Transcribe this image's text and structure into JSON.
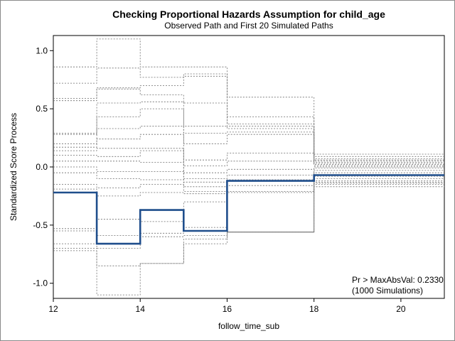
{
  "chart_data": {
    "type": "line",
    "title": "Checking Proportional Hazards Assumption for child_age",
    "subtitle": "Observed Path and First 20 Simulated Paths",
    "xlabel": "follow_time_sub",
    "ylabel": "Standardized Score Process",
    "xlim": [
      12,
      21
    ],
    "ylim": [
      -1.13,
      1.13
    ],
    "xticks": [
      12,
      14,
      16,
      18,
      20
    ],
    "yticks": [
      -1.0,
      -0.5,
      0.0,
      0.5,
      1.0
    ],
    "ytick_labels": [
      "-1.0",
      "-0.5",
      "0.0",
      "0.5",
      "1.0"
    ],
    "grid": false,
    "inset_text": [
      "Pr > MaxAbsVal: 0.2330",
      "(1000 Simulations)"
    ],
    "colors": {
      "observed": "#1f4e8c",
      "simulated": "#6e6e6e",
      "axis": "#000000"
    },
    "step_x": [
      12,
      13,
      14,
      15,
      16,
      18,
      21
    ],
    "observed": {
      "values": [
        -0.22,
        -0.66,
        -0.37,
        -0.55,
        -0.12,
        -0.07
      ]
    },
    "simulated": [
      [
        0.86,
        1.1,
        0.86,
        0.86,
        0.6,
        0.11
      ],
      [
        0.72,
        0.85,
        0.77,
        0.8,
        0.43,
        0.09
      ],
      [
        0.59,
        0.68,
        0.7,
        0.78,
        0.37,
        0.07
      ],
      [
        0.57,
        0.67,
        0.62,
        0.55,
        0.35,
        0.06
      ],
      [
        0.29,
        0.55,
        0.56,
        0.35,
        0.33,
        0.05
      ],
      [
        0.28,
        0.43,
        0.5,
        0.29,
        0.3,
        0.04
      ],
      [
        0.2,
        0.33,
        0.35,
        0.2,
        0.28,
        0.03
      ],
      [
        0.17,
        0.24,
        0.28,
        0.06,
        0.12,
        0.02
      ],
      [
        0.14,
        0.16,
        0.16,
        0.01,
        0.05,
        0.01
      ],
      [
        0.1,
        0.09,
        0.14,
        -0.05,
        -0.02,
        0.0
      ],
      [
        0.05,
        0.05,
        0.04,
        -0.1,
        -0.07,
        -0.01
      ],
      [
        0.0,
        -0.04,
        -0.04,
        -0.13,
        -0.11,
        -0.03
      ],
      [
        -0.05,
        -0.1,
        -0.11,
        -0.17,
        -0.16,
        -0.05
      ],
      [
        -0.15,
        -0.18,
        -0.15,
        -0.21,
        -0.21,
        -0.08
      ],
      [
        -0.19,
        -0.25,
        -0.22,
        -0.23,
        -0.22,
        -0.1
      ],
      [
        -0.53,
        -0.45,
        -0.47,
        -0.3,
        -0.56,
        -0.12
      ],
      [
        -0.55,
        -0.59,
        -0.57,
        -0.52,
        -0.56,
        -0.13
      ],
      [
        -0.66,
        -0.7,
        -0.6,
        -0.59,
        -0.56,
        -0.14
      ],
      [
        -0.7,
        -0.85,
        -0.83,
        -0.62,
        -0.56,
        -0.15
      ],
      [
        -0.72,
        -1.1,
        -0.83,
        -0.66,
        -0.56,
        -0.17
      ]
    ]
  }
}
